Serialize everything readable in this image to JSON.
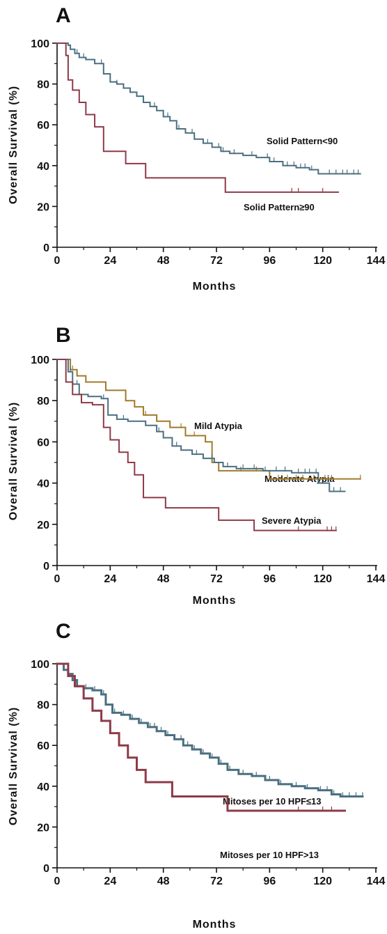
{
  "chart_data": [
    {
      "type": "line",
      "panel": "A",
      "xlabel": "Months",
      "ylabel": "Overall Survival (%)",
      "xlim": [
        0,
        144
      ],
      "ylim": [
        0,
        100
      ],
      "xticks": [
        0,
        24,
        48,
        72,
        96,
        120,
        144
      ],
      "yticks": [
        0,
        20,
        40,
        60,
        80,
        100
      ],
      "colors": [
        "#4a6f80",
        "#8e3a48"
      ],
      "series": [
        {
          "name": "Solid Pattern<90",
          "x": [
            0,
            5,
            6,
            8,
            10,
            13,
            17,
            21,
            24,
            27,
            30,
            33,
            36,
            39,
            42,
            45,
            48,
            51,
            54,
            58,
            62,
            66,
            70,
            74,
            78,
            84,
            90,
            96,
            102,
            108,
            114,
            118,
            137
          ],
          "y": [
            100,
            99,
            97,
            95,
            93,
            92,
            90,
            85,
            81,
            80,
            78,
            76,
            74,
            71,
            69,
            67,
            64,
            62,
            58,
            56,
            53,
            51,
            49,
            47,
            46,
            45,
            44,
            42,
            40,
            39,
            38,
            36,
            36
          ],
          "censor_x": [
            6,
            9,
            12,
            20,
            27,
            33,
            39,
            44,
            50,
            55,
            61,
            68,
            73,
            75,
            80,
            88,
            95,
            98,
            104,
            107,
            110,
            112,
            115,
            123,
            126,
            129,
            131,
            134,
            136
          ]
        },
        {
          "name": "Solid Pattern≥90",
          "x": [
            0,
            4,
            5,
            7,
            10,
            13,
            17,
            21,
            31,
            40,
            76,
            127
          ],
          "y": [
            100,
            94,
            82,
            77,
            71,
            65,
            59,
            47,
            41,
            34,
            27,
            27
          ],
          "censor_x": [
            106,
            109,
            120
          ]
        }
      ],
      "annotations": [
        "Solid Pattern<90",
        "Solid Pattern≥90"
      ]
    },
    {
      "type": "line",
      "panel": "B",
      "xlabel": "Months",
      "ylabel": "Overall Survival (%)",
      "xlim": [
        0,
        144
      ],
      "ylim": [
        0,
        100
      ],
      "xticks": [
        0,
        24,
        48,
        72,
        96,
        120,
        144
      ],
      "yticks": [
        0,
        20,
        40,
        60,
        80,
        100
      ],
      "colors": [
        "#a07a2a",
        "#4a6f80",
        "#8e3a48"
      ],
      "series": [
        {
          "name": "Mild Atypia",
          "x": [
            0,
            6,
            9,
            13,
            22,
            31,
            35,
            39,
            45,
            51,
            58,
            67,
            70,
            73,
            75,
            84,
            96,
            106,
            137
          ],
          "y": [
            100,
            95,
            92,
            89,
            85,
            80,
            77,
            73,
            70,
            67,
            63,
            60,
            50,
            46,
            46,
            46,
            42,
            42,
            42
          ],
          "censor_x": [
            7,
            40,
            56,
            62,
            83,
            90,
            100,
            104,
            108,
            111,
            116,
            121,
            124,
            137
          ]
        },
        {
          "name": "Moderate Atypia",
          "x": [
            0,
            5,
            7,
            10,
            14,
            20,
            23,
            27,
            32,
            40,
            45,
            48,
            52,
            56,
            61,
            66,
            71,
            75,
            81,
            93,
            106,
            118,
            123,
            130
          ],
          "y": [
            100,
            94,
            88,
            83,
            82,
            81,
            73,
            71,
            70,
            68,
            65,
            62,
            58,
            56,
            54,
            52,
            50,
            48,
            47,
            46,
            45,
            40,
            36,
            36
          ],
          "censor_x": [
            6,
            9,
            21,
            30,
            46,
            54,
            63,
            70,
            77,
            84,
            89,
            94,
            99,
            103,
            109,
            112,
            114,
            117,
            125,
            128
          ]
        },
        {
          "name": "Severe Atypia",
          "x": [
            0,
            4,
            7,
            11,
            16,
            21,
            24,
            28,
            32,
            35,
            39,
            49,
            73,
            89,
            126
          ],
          "y": [
            100,
            89,
            83,
            79,
            78,
            67,
            61,
            55,
            50,
            44,
            33,
            28,
            22,
            17,
            17
          ],
          "censor_x": [
            109,
            122,
            124,
            126
          ]
        }
      ],
      "annotations": [
        "Mild Atypia",
        "Moderate Atypia",
        "Severe Atypia"
      ]
    },
    {
      "type": "line",
      "panel": "C",
      "xlabel": "Months",
      "ylabel": "Overall Survival (%)",
      "xlim": [
        0,
        144
      ],
      "ylim": [
        0,
        100
      ],
      "xticks": [
        0,
        24,
        48,
        72,
        96,
        120,
        144
      ],
      "yticks": [
        0,
        20,
        40,
        60,
        80,
        100
      ],
      "colors": [
        "#4a6f80",
        "#8e3a48"
      ],
      "series": [
        {
          "name": "Mitoses per 10 HPF≤13",
          "x": [
            0,
            3,
            5,
            7,
            9,
            12,
            16,
            20,
            22,
            25,
            29,
            33,
            37,
            41,
            45,
            49,
            53,
            57,
            61,
            65,
            69,
            73,
            77,
            82,
            88,
            94,
            100,
            106,
            112,
            118,
            124,
            128,
            138
          ],
          "y": [
            100,
            97,
            95,
            92,
            89,
            88,
            87,
            85,
            80,
            76,
            75,
            73,
            71,
            69,
            67,
            65,
            63,
            60,
            58,
            56,
            54,
            51,
            48,
            46,
            45,
            43,
            41,
            40,
            39,
            38,
            36,
            35,
            35
          ],
          "censor_x": [
            5,
            8,
            13,
            17,
            21,
            26,
            30,
            34,
            38,
            42,
            44,
            47,
            50,
            56,
            59,
            62,
            66,
            70,
            74,
            78,
            84,
            90,
            96,
            101,
            108,
            113,
            119,
            122,
            125,
            129,
            132,
            135,
            138
          ]
        },
        {
          "name": "Mitoses per 10 HPF>13",
          "x": [
            0,
            5,
            8,
            12,
            16,
            20,
            24,
            28,
            32,
            36,
            40,
            52,
            77,
            130
          ],
          "y": [
            100,
            94,
            89,
            83,
            77,
            72,
            66,
            60,
            54,
            48,
            42,
            35,
            28,
            28
          ],
          "censor_x": [
            109,
            120,
            124
          ]
        }
      ],
      "annotations": [
        "Mitoses per 10 HPF≤13",
        "Mitoses per 10 HPF>13"
      ]
    }
  ],
  "panels": [
    {
      "letter": "A",
      "annotations": [
        "Solid Pattern<90",
        "Solid Pattern≥90"
      ]
    },
    {
      "letter": "B",
      "annotations": [
        "Mild Atypia",
        "Moderate Atypia",
        "Severe Atypia"
      ]
    },
    {
      "letter": "C",
      "annotations": [
        "Mitoses per 10 HPF≤13",
        "Mitoses per 10 HPF>13"
      ]
    }
  ],
  "xlabel": "Months",
  "ylabel": "Overall Survival (%)"
}
